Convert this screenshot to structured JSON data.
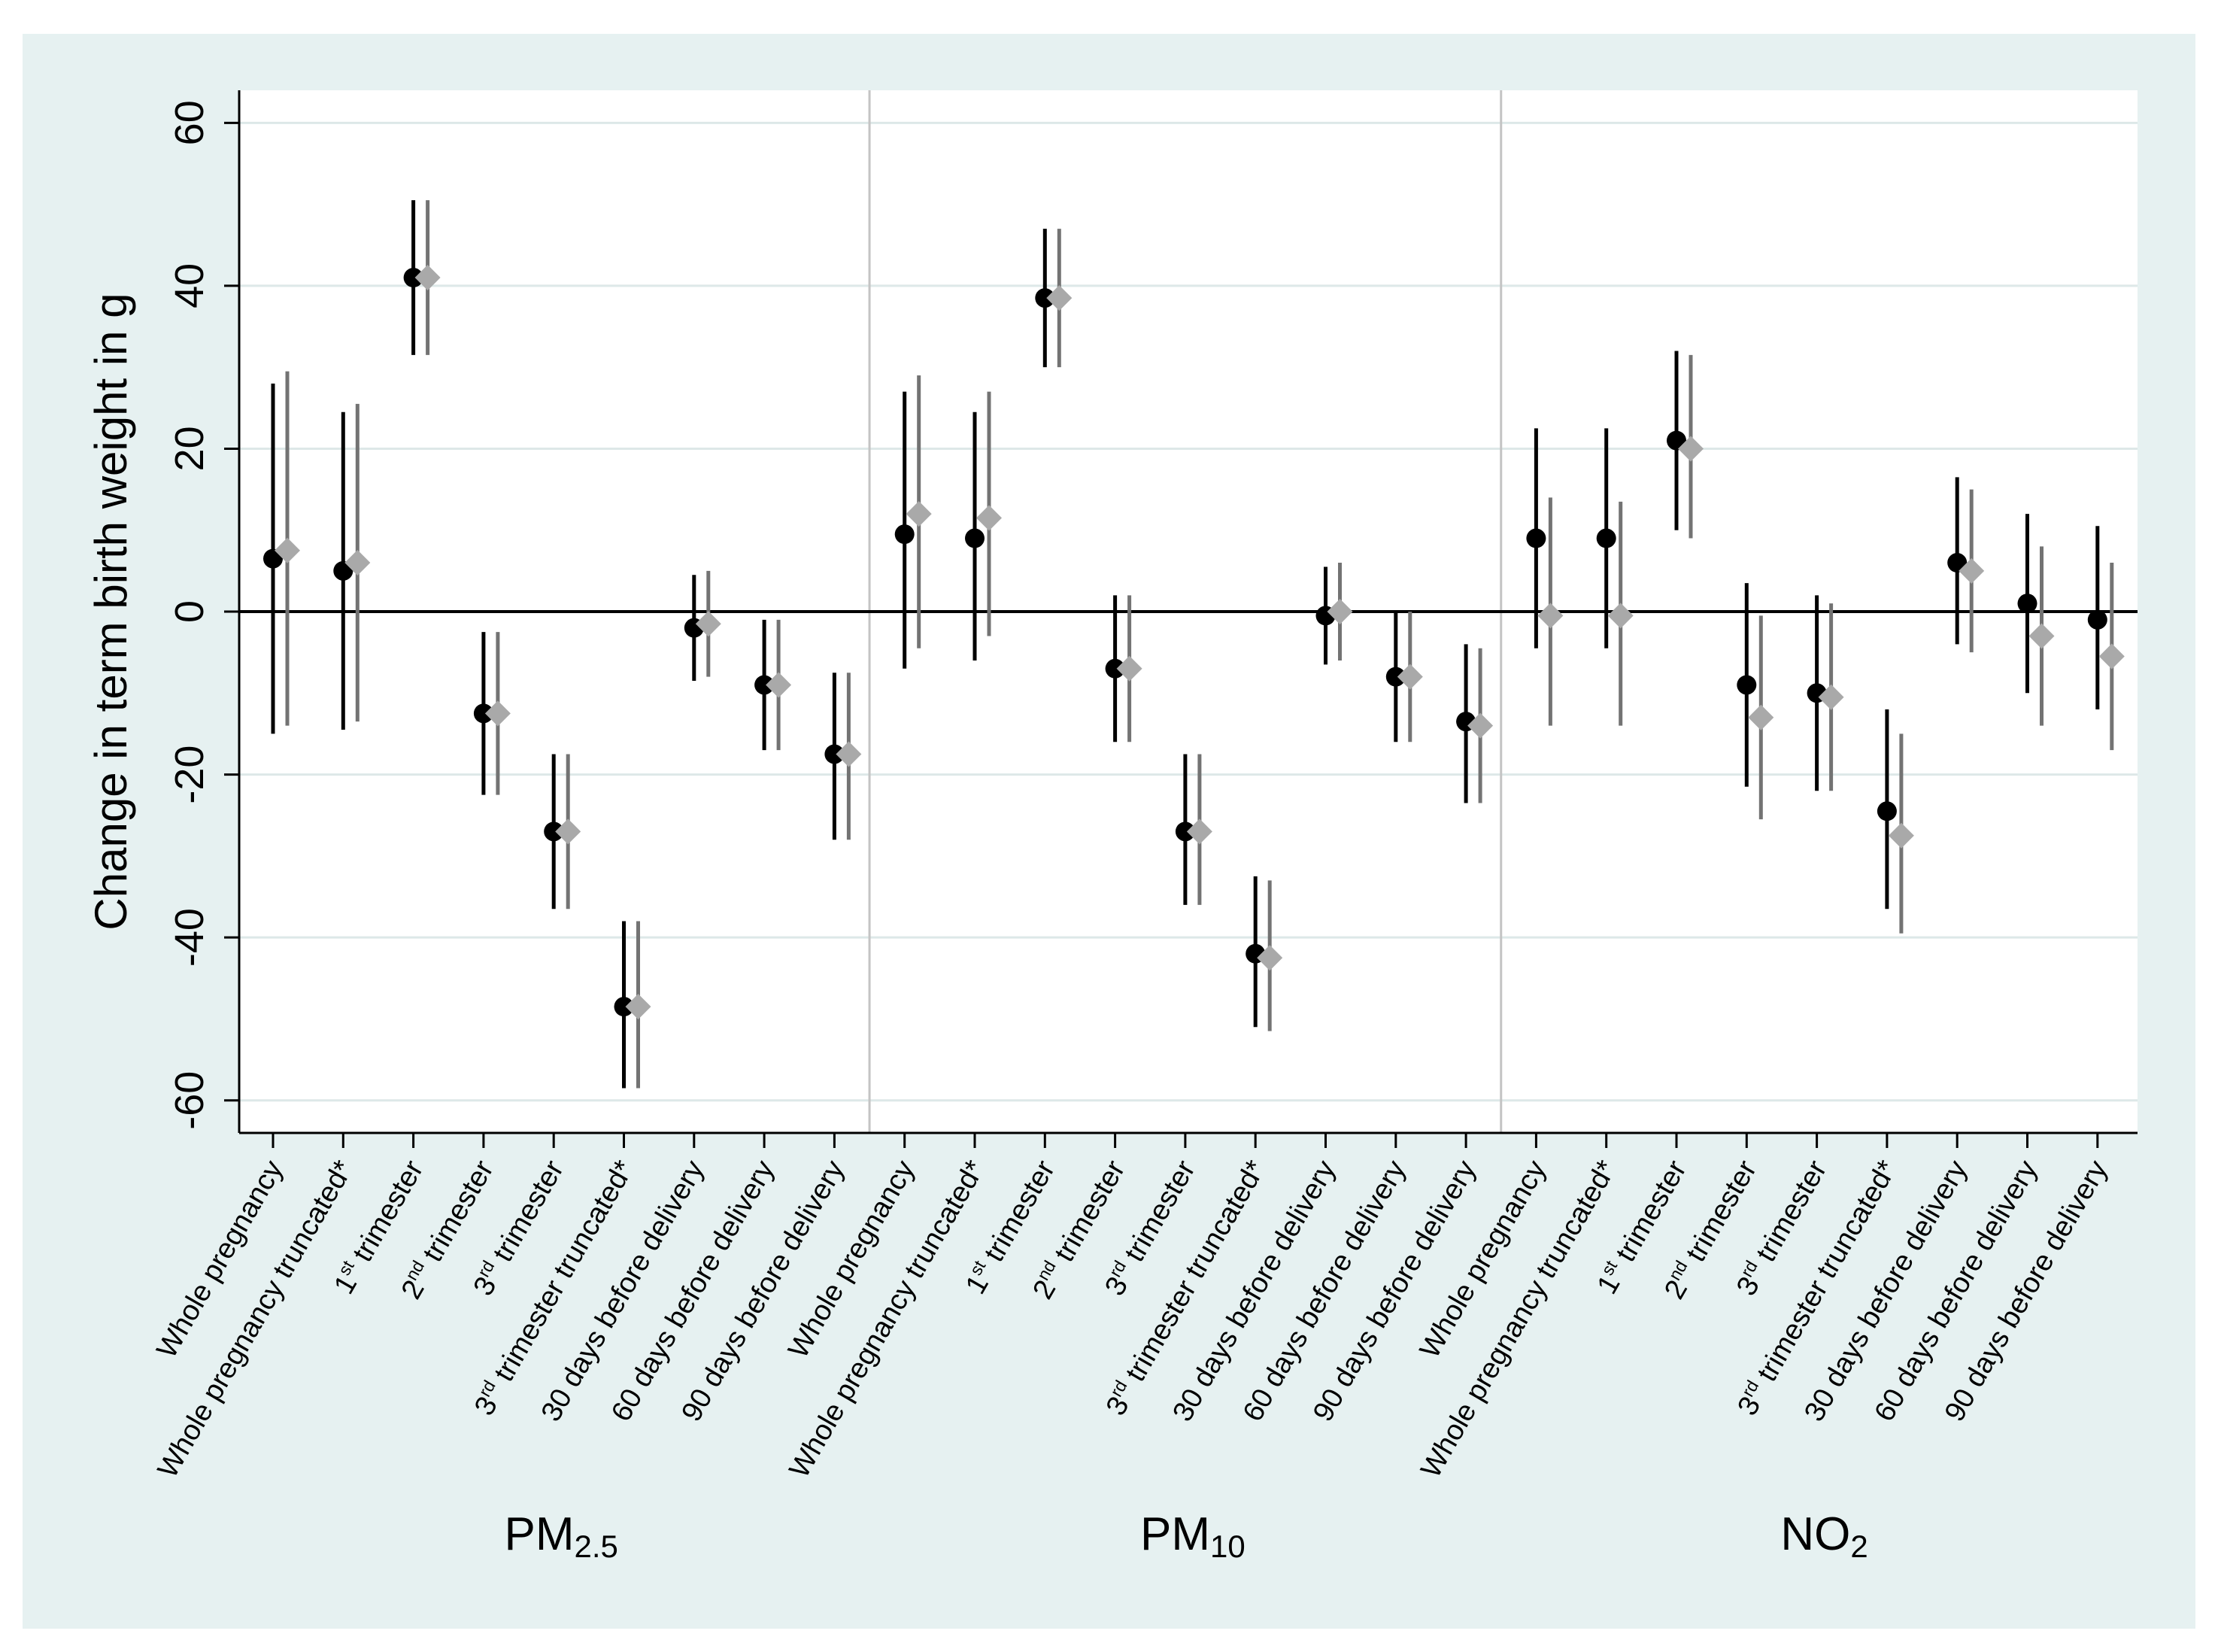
{
  "chart_data": {
    "type": "scatter",
    "subtype": "point-estimate with confidence intervals",
    "ylabel": "Change in term birth weight in g",
    "ylim": [
      -64,
      64
    ],
    "yticks": [
      60,
      40,
      20,
      0,
      -20,
      -40,
      -60
    ],
    "ytick_labels": [
      "60",
      "40",
      "20",
      "0",
      "-20",
      "-40",
      "-60"
    ],
    "grid": true,
    "reference_line": 0,
    "colors": {
      "frame_bg": "#e6f1f1",
      "plot_bg": "#ffffff",
      "grid": "#dde8e8",
      "separator": "#c4c4c4",
      "series1": "#000000",
      "series2": "#a9a9a9",
      "series2_ci": "#737373",
      "axis": "#000000"
    },
    "groups": [
      {
        "label_main": "PM",
        "label_sub": "2.5",
        "points": [
          {
            "label": "Whole pregnancy",
            "s1": {
              "est": 6.5,
              "lo": -15,
              "hi": 28
            },
            "s2": {
              "est": 7.5,
              "lo": -14,
              "hi": 29.5
            }
          },
          {
            "label": "Whole pregnancy truncated*",
            "s1": {
              "est": 5,
              "lo": -14.5,
              "hi": 24.5
            },
            "s2": {
              "est": 6,
              "lo": -13.5,
              "hi": 25.5
            }
          },
          {
            "label_pre": "1",
            "label_sup": "st",
            "label_post": " trimester",
            "s1": {
              "est": 41,
              "lo": 31.5,
              "hi": 50.5
            },
            "s2": {
              "est": 41,
              "lo": 31.5,
              "hi": 50.5
            }
          },
          {
            "label_pre": "2",
            "label_sup": "nd",
            "label_post": " trimester",
            "s1": {
              "est": -12.5,
              "lo": -22.5,
              "hi": -2.5
            },
            "s2": {
              "est": -12.5,
              "lo": -22.5,
              "hi": -2.5
            }
          },
          {
            "label_pre": "3",
            "label_sup": "rd",
            "label_post": " trimester",
            "s1": {
              "est": -27,
              "lo": -36.5,
              "hi": -17.5
            },
            "s2": {
              "est": -27,
              "lo": -36.5,
              "hi": -17.5
            }
          },
          {
            "label_pre": "3",
            "label_sup": "rd",
            "label_post": " trimester truncated*",
            "s1": {
              "est": -48.5,
              "lo": -58.5,
              "hi": -38
            },
            "s2": {
              "est": -48.5,
              "lo": -58.5,
              "hi": -38
            }
          },
          {
            "label": "30 days before delivery",
            "s1": {
              "est": -2,
              "lo": -8.5,
              "hi": 4.5
            },
            "s2": {
              "est": -1.5,
              "lo": -8,
              "hi": 5
            }
          },
          {
            "label": "60 days before delivery",
            "s1": {
              "est": -9,
              "lo": -17,
              "hi": -1
            },
            "s2": {
              "est": -9,
              "lo": -17,
              "hi": -1
            }
          },
          {
            "label": "90 days before delivery",
            "s1": {
              "est": -17.5,
              "lo": -28,
              "hi": -7.5
            },
            "s2": {
              "est": -17.5,
              "lo": -28,
              "hi": -7.5
            }
          }
        ]
      },
      {
        "label_main": "PM",
        "label_sub": "10",
        "points": [
          {
            "label": "Whole pregnancy",
            "s1": {
              "est": 9.5,
              "lo": -7,
              "hi": 27
            },
            "s2": {
              "est": 12,
              "lo": -4.5,
              "hi": 29
            }
          },
          {
            "label": "Whole pregnancy truncated*",
            "s1": {
              "est": 9,
              "lo": -6,
              "hi": 24.5
            },
            "s2": {
              "est": 11.5,
              "lo": -3,
              "hi": 27
            }
          },
          {
            "label_pre": "1",
            "label_sup": "st",
            "label_post": " trimester",
            "s1": {
              "est": 38.5,
              "lo": 30,
              "hi": 47
            },
            "s2": {
              "est": 38.5,
              "lo": 30,
              "hi": 47
            }
          },
          {
            "label_pre": "2",
            "label_sup": "nd",
            "label_post": " trimester",
            "s1": {
              "est": -7,
              "lo": -16,
              "hi": 2
            },
            "s2": {
              "est": -7,
              "lo": -16,
              "hi": 2
            }
          },
          {
            "label_pre": "3",
            "label_sup": "rd",
            "label_post": " trimester",
            "s1": {
              "est": -27,
              "lo": -36,
              "hi": -17.5
            },
            "s2": {
              "est": -27,
              "lo": -36,
              "hi": -17.5
            }
          },
          {
            "label_pre": "3",
            "label_sup": "rd",
            "label_post": " trimester truncated*",
            "s1": {
              "est": -42,
              "lo": -51,
              "hi": -32.5
            },
            "s2": {
              "est": -42.5,
              "lo": -51.5,
              "hi": -33
            }
          },
          {
            "label": "30 days before delivery",
            "s1": {
              "est": -0.5,
              "lo": -6.5,
              "hi": 5.5
            },
            "s2": {
              "est": 0,
              "lo": -6,
              "hi": 6
            }
          },
          {
            "label": "60 days before delivery",
            "s1": {
              "est": -8,
              "lo": -16,
              "hi": 0
            },
            "s2": {
              "est": -8,
              "lo": -16,
              "hi": 0
            }
          },
          {
            "label": "90 days before delivery",
            "s1": {
              "est": -13.5,
              "lo": -23.5,
              "hi": -4
            },
            "s2": {
              "est": -14,
              "lo": -23.5,
              "hi": -4.5
            }
          }
        ]
      },
      {
        "label_main": "NO",
        "label_sub": "2",
        "points": [
          {
            "label": "Whole pregnancy",
            "s1": {
              "est": 9,
              "lo": -4.5,
              "hi": 22.5
            },
            "s2": {
              "est": -0.5,
              "lo": -14,
              "hi": 14
            }
          },
          {
            "label": "Whole pregnancy truncated*",
            "s1": {
              "est": 9,
              "lo": -4.5,
              "hi": 22.5
            },
            "s2": {
              "est": -0.5,
              "lo": -14,
              "hi": 13.5
            }
          },
          {
            "label_pre": "1",
            "label_sup": "st",
            "label_post": " trimester",
            "s1": {
              "est": 21,
              "lo": 10,
              "hi": 32
            },
            "s2": {
              "est": 20,
              "lo": 9,
              "hi": 31.5
            }
          },
          {
            "label_pre": "2",
            "label_sup": "nd",
            "label_post": " trimester",
            "s1": {
              "est": -9,
              "lo": -21.5,
              "hi": 3.5
            },
            "s2": {
              "est": -13,
              "lo": -25.5,
              "hi": -0.5
            }
          },
          {
            "label_pre": "3",
            "label_sup": "rd",
            "label_post": " trimester",
            "s1": {
              "est": -10,
              "lo": -22,
              "hi": 2
            },
            "s2": {
              "est": -10.5,
              "lo": -22,
              "hi": 1
            }
          },
          {
            "label_pre": "3",
            "label_sup": "rd",
            "label_post": " trimester truncated*",
            "s1": {
              "est": -24.5,
              "lo": -36.5,
              "hi": -12
            },
            "s2": {
              "est": -27.5,
              "lo": -39.5,
              "hi": -15
            }
          },
          {
            "label": "30 days before delivery",
            "s1": {
              "est": 6,
              "lo": -4,
              "hi": 16.5
            },
            "s2": {
              "est": 5,
              "lo": -5,
              "hi": 15
            }
          },
          {
            "label": "60 days before delivery",
            "s1": {
              "est": 1,
              "lo": -10,
              "hi": 12
            },
            "s2": {
              "est": -3,
              "lo": -14,
              "hi": 8
            }
          },
          {
            "label": "90 days before delivery",
            "s1": {
              "est": -1,
              "lo": -12,
              "hi": 10.5
            },
            "s2": {
              "est": -5.5,
              "lo": -17,
              "hi": 6
            }
          }
        ]
      }
    ]
  }
}
